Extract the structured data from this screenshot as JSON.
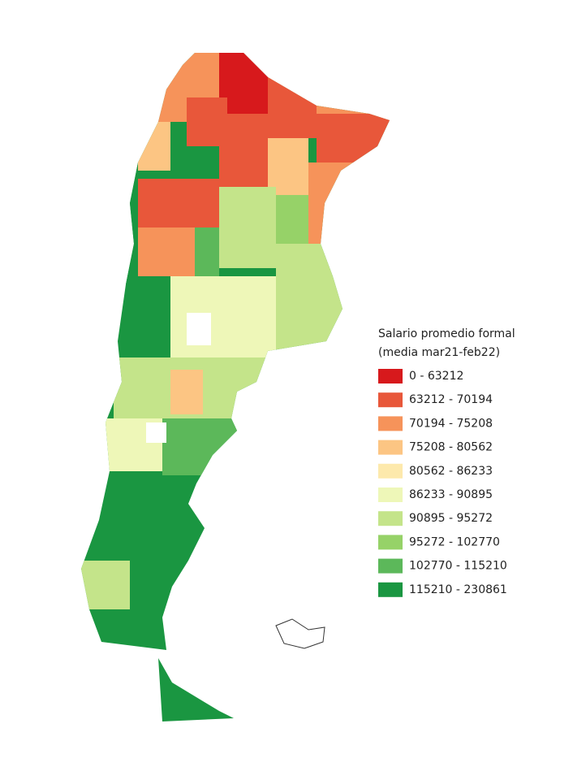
{
  "legend": {
    "title": [
      "Salario promedio formal",
      "(media mar21-feb22)"
    ],
    "items": [
      {
        "label": "0 - 63212",
        "color": "#d7191c"
      },
      {
        "label": "63212 - 70194",
        "color": "#e8573a"
      },
      {
        "label": "70194 - 75208",
        "color": "#f6935a"
      },
      {
        "label": "75208 - 80562",
        "color": "#fcc583"
      },
      {
        "label": "80562 - 86233",
        "color": "#fde9ac"
      },
      {
        "label": "86233 - 90895",
        "color": "#eef7b8"
      },
      {
        "label": "90895 - 95272",
        "color": "#c4e48a"
      },
      {
        "label": "95272 - 102770",
        "color": "#96d268"
      },
      {
        "label": "102770 - 115210",
        "color": "#5cb85a"
      },
      {
        "label": "115210 - 230861",
        "color": "#1a9641"
      }
    ]
  }
}
